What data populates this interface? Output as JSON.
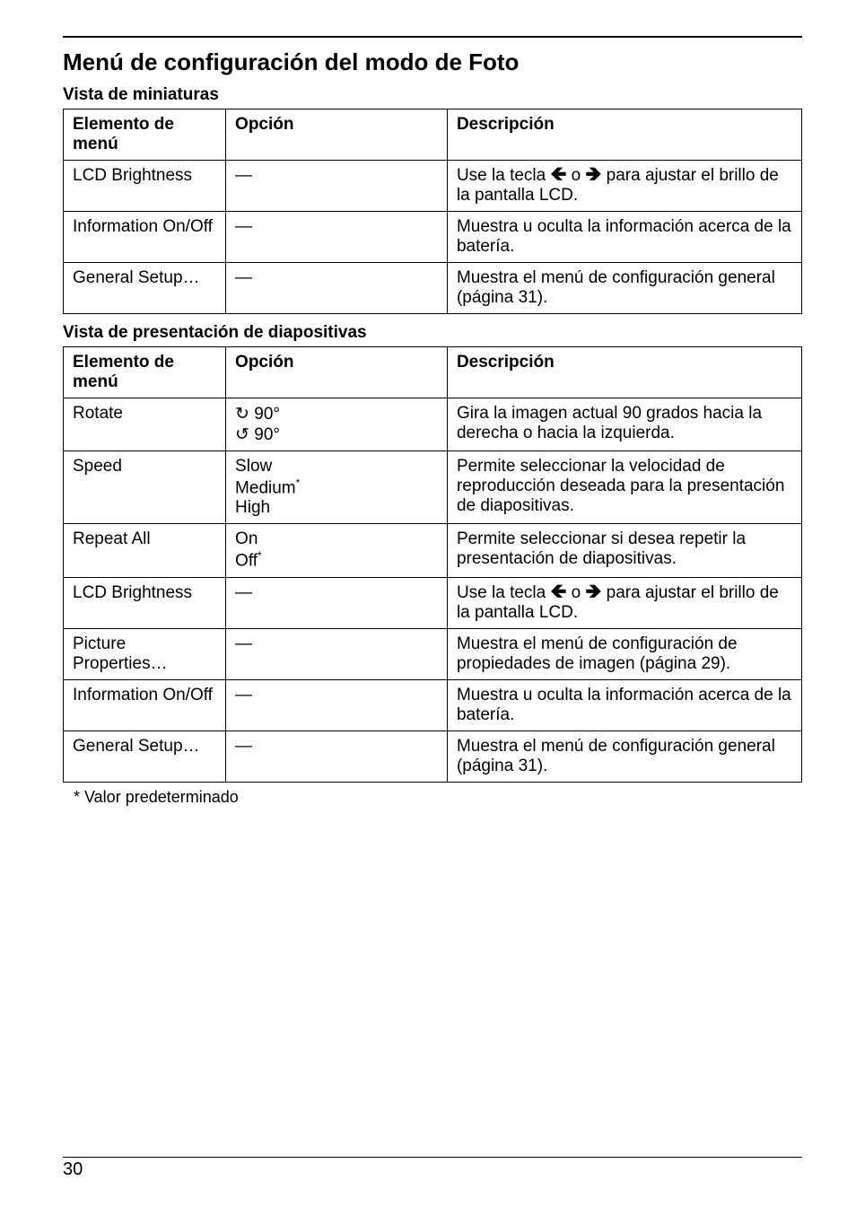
{
  "page": {
    "number": "30",
    "section_title": "Menú de configuración del modo de Foto"
  },
  "thumb": {
    "heading": "Vista de miniaturas",
    "header": {
      "c1": "Elemento de menú",
      "c2": "Opción",
      "c3": "Descripción"
    },
    "rows": [
      {
        "c1": "LCD Brightness",
        "c2": "—",
        "c3_pre": "Use la tecla ",
        "c3_post": " para ajustar el brillo de la pantalla LCD.",
        "arrows": true
      },
      {
        "c1": "Information On/Off",
        "c2": "—",
        "c3": "Muestra u oculta la información acerca de la batería."
      },
      {
        "c1": "General Setup…",
        "c2": "—",
        "c3": "Muestra el menú de configuración general (página 31)."
      }
    ]
  },
  "slides": {
    "heading": "Vista de presentación de diapositivas",
    "header": {
      "c1": "Elemento de menú",
      "c2": "Opción",
      "c3": "Descripción"
    },
    "rows": [
      {
        "c1": "Rotate",
        "c2_lines": [
          "↻ 90°",
          "↺ 90°"
        ],
        "c3": "Gira la imagen actual 90 grados hacia la derecha o hacia la izquierda."
      },
      {
        "c1": "Speed",
        "c2_lines": [
          "Slow",
          "Medium*",
          "High"
        ],
        "c2_sup_idx": 1,
        "c3": "Permite seleccionar la velocidad de reproducción deseada para la presentación de diapositivas."
      },
      {
        "c1": "Repeat All",
        "c2_lines": [
          "On",
          "Off*"
        ],
        "c2_sup_idx": 1,
        "c3": "Permite seleccionar si desea repetir la presentación de diapositivas."
      },
      {
        "c1": "LCD Brightness",
        "c2": "—",
        "c3_pre": "Use la tecla ",
        "c3_post": " para ajustar el brillo de la pantalla LCD.",
        "arrows": true
      },
      {
        "c1": "Picture Properties…",
        "c2": "—",
        "c3": "Muestra el menú de configuración de propiedades de imagen (página 29)."
      },
      {
        "c1": "Information On/Off",
        "c2": "—",
        "c3": "Muestra u oculta la información acerca de la batería."
      },
      {
        "c1": "General Setup…",
        "c2": "—",
        "c3": "Muestra el menú de configuración general (página 31)."
      }
    ]
  },
  "footnote": "*   Valor predeterminado",
  "arrows": {
    "left": "🡸",
    "mid": " o ",
    "right": "🡺"
  }
}
